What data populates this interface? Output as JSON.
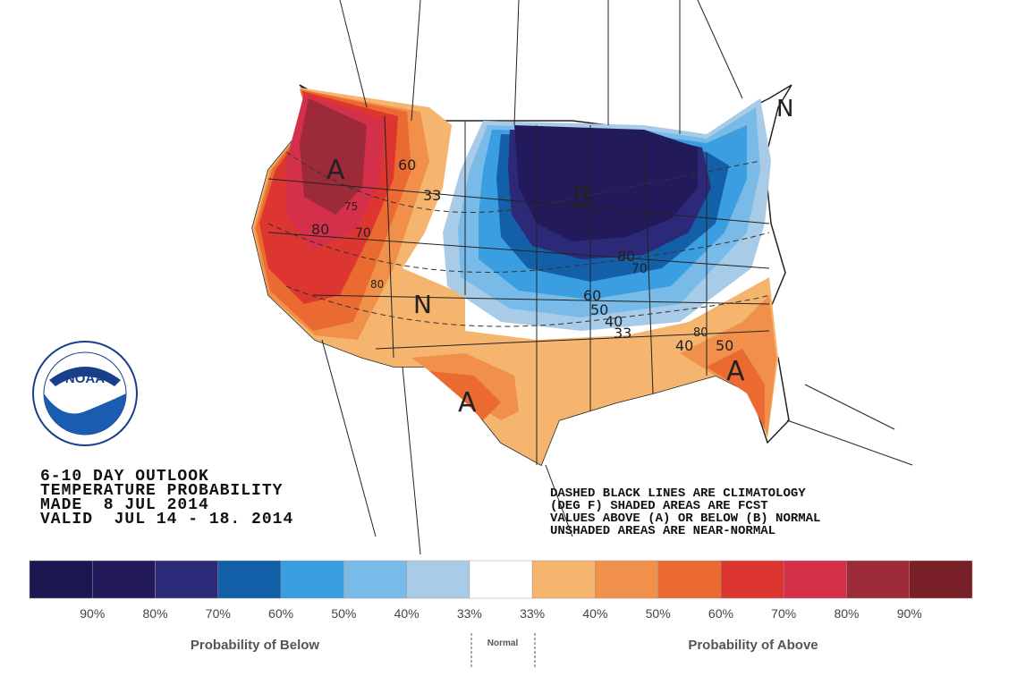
{
  "header": {
    "lines": [
      "6-10 DAY OUTLOOK",
      "TEMPERATURE PROBABILITY",
      "MADE  8 JUL 2014",
      "VALID  JUL 14 - 18. 2014"
    ]
  },
  "notes": {
    "lines": [
      "DASHED BLACK LINES ARE CLIMATOLOGY",
      "(DEG F) SHADED AREAS ARE FCST",
      "VALUES ABOVE (A) OR BELOW (B) NORMAL",
      "UNSHADED AREAS ARE NEAR-NORMAL"
    ]
  },
  "logo": {
    "text": "NOAA"
  },
  "map": {
    "labels": [
      "A",
      "60",
      "33",
      "80",
      "70",
      "B",
      "80",
      "70",
      "N",
      "60",
      "50",
      "40",
      "33",
      "80",
      "40",
      "50",
      "A",
      "A",
      "N",
      "80",
      "75"
    ]
  },
  "legend": {
    "colors": [
      "#1a1650",
      "#221a5a",
      "#2c2a78",
      "#1460a8",
      "#3a9ee0",
      "#78bbe8",
      "#a8cce8",
      "#ffffff",
      "#f5b56e",
      "#f0904a",
      "#ea6a32",
      "#dd3630",
      "#d4304a",
      "#9c2a38",
      "#7a2028"
    ],
    "labels": [
      "90%",
      "80%",
      "70%",
      "60%",
      "50%",
      "40%",
      "33%",
      "33%",
      "40%",
      "50%",
      "60%",
      "70%",
      "80%",
      "90%"
    ],
    "below": "Probability of Below",
    "normal": "Normal",
    "above": "Probability of Above"
  }
}
